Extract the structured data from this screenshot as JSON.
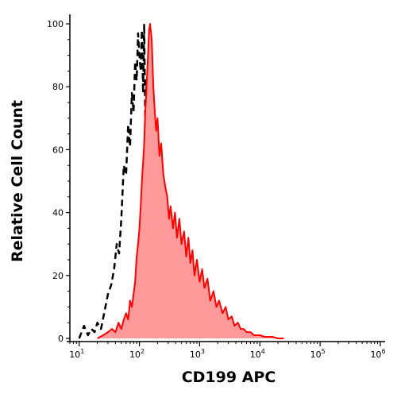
{
  "chart_data": {
    "type": "area",
    "title": "",
    "xlabel": "CD199 APC",
    "ylabel": "Relative Cell Count",
    "x_scale": "log",
    "xlim": [
      7,
      1200000
    ],
    "ylim": [
      0,
      100
    ],
    "grid": false,
    "legend": "none",
    "x_ticks": [
      {
        "value": 10,
        "base": "10",
        "exp": "1"
      },
      {
        "value": 100,
        "base": "10",
        "exp": "2"
      },
      {
        "value": 1000,
        "base": "10",
        "exp": "3"
      },
      {
        "value": 10000,
        "base": "10",
        "exp": "4"
      },
      {
        "value": 100000,
        "base": "10",
        "exp": "5"
      },
      {
        "value": 1000000,
        "base": "10",
        "exp": "6"
      }
    ],
    "y_ticks": [
      {
        "value": 0,
        "label": "0"
      },
      {
        "value": 20,
        "label": "20"
      },
      {
        "value": 40,
        "label": "40"
      },
      {
        "value": 60,
        "label": "60"
      },
      {
        "value": 80,
        "label": "80"
      },
      {
        "value": 100,
        "label": "100"
      }
    ],
    "series": [
      {
        "style": "dashed",
        "color": "#000000",
        "x": [
          10,
          12,
          14,
          16,
          18,
          20,
          23,
          26,
          30,
          34,
          38,
          42,
          46,
          50,
          55,
          60,
          65,
          70,
          75,
          80,
          85,
          90,
          95,
          100,
          105,
          110,
          115,
          120,
          125,
          130,
          135,
          140,
          145,
          150,
          160,
          170,
          180,
          195,
          210,
          230,
          250,
          270,
          300,
          330,
          360,
          400,
          440,
          480,
          520
        ],
        "y": [
          0,
          4,
          1,
          3,
          2,
          5,
          3,
          8,
          14,
          17,
          22,
          30,
          27,
          38,
          55,
          52,
          68,
          61,
          78,
          72,
          88,
          82,
          97,
          90,
          85,
          98,
          78,
          100,
          70,
          82,
          58,
          64,
          44,
          30,
          22,
          12,
          9,
          6,
          3,
          8,
          2,
          5,
          1,
          3,
          4,
          1,
          2,
          0,
          0
        ]
      },
      {
        "style": "filled",
        "color": "#ff0000",
        "fill": "#ff9a9a",
        "x": [
          20,
          25,
          30,
          35,
          40,
          45,
          50,
          55,
          60,
          65,
          70,
          75,
          80,
          85,
          90,
          95,
          100,
          105,
          110,
          115,
          120,
          125,
          130,
          135,
          140,
          145,
          150,
          160,
          170,
          180,
          190,
          200,
          215,
          230,
          250,
          270,
          290,
          310,
          330,
          360,
          390,
          420,
          460,
          500,
          550,
          600,
          650,
          700,
          760,
          820,
          900,
          1000,
          1100,
          1200,
          1350,
          1500,
          1700,
          1900,
          2100,
          2400,
          2700,
          3000,
          3400,
          3800,
          4300,
          4800,
          5400,
          6000,
          7000,
          8000,
          9000,
          10000,
          12000,
          14000,
          16000,
          20000,
          25000
        ],
        "y": [
          0,
          1,
          2,
          3,
          2,
          5,
          3,
          6,
          8,
          6,
          12,
          10,
          14,
          18,
          26,
          30,
          35,
          42,
          50,
          56,
          62,
          72,
          78,
          85,
          92,
          98,
          100,
          95,
          80,
          72,
          66,
          70,
          58,
          62,
          52,
          48,
          45,
          38,
          42,
          35,
          40,
          32,
          38,
          30,
          34,
          26,
          32,
          24,
          28,
          20,
          25,
          18,
          22,
          16,
          19,
          12,
          15,
          10,
          12,
          8,
          10,
          6,
          7,
          4,
          5,
          3,
          3,
          2,
          2,
          1,
          1,
          1,
          0.5,
          0.5,
          0.5,
          0,
          0
        ]
      }
    ]
  }
}
